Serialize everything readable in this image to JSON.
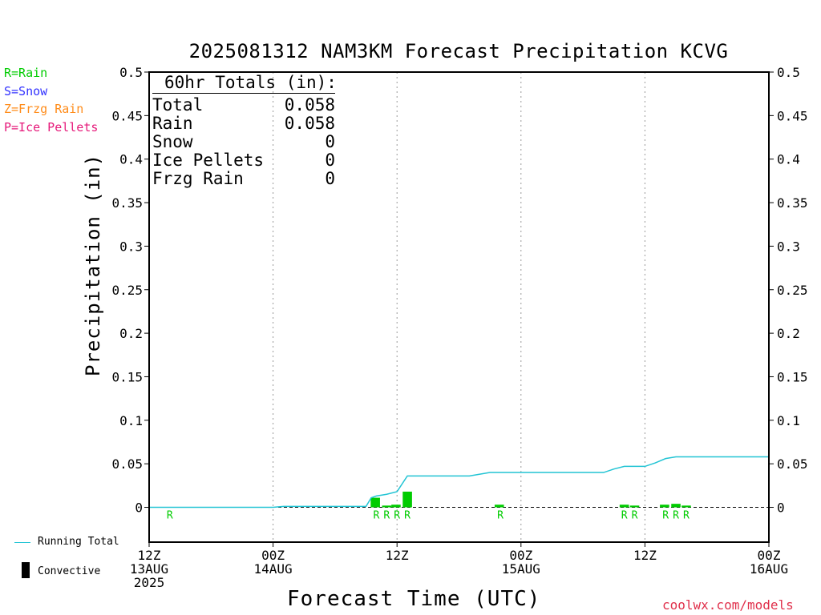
{
  "title": "2025081312 NAM3KM Forecast Precipitation KCVG",
  "ptype_legend": {
    "rain": "R=Rain",
    "snow": "S=Snow",
    "frzg_rain": "Z=Frzg Rain",
    "ice_pellets": "P=Ice Pellets"
  },
  "totals": {
    "header": "60hr Totals (in):",
    "rows": [
      {
        "label": "Total",
        "value": "0.058"
      },
      {
        "label": "Rain",
        "value": "0.058"
      },
      {
        "label": "Snow",
        "value": "0"
      },
      {
        "label": "Ice Pellets",
        "value": "0"
      },
      {
        "label": "Frzg Rain",
        "value": "0"
      }
    ]
  },
  "bottom_legend": {
    "running_total": "Running Total",
    "convective": "Convective"
  },
  "credit": "coolwx.com/models",
  "colors": {
    "rain": "#00cc00",
    "snow": "#3333ff",
    "frzg_rain": "#ff8c1a",
    "ice_pellets": "#e6197a",
    "running_total": "#22c4d4",
    "credit": "#e0304b"
  },
  "chart_data": {
    "type": "bar",
    "xlabel": "Forecast Time (UTC)",
    "ylabel": "Precipitation (in)",
    "xlim": [
      0,
      60
    ],
    "ylim": [
      -0.04,
      0.5
    ],
    "y_ticks": [
      "0",
      "0.05",
      "0.1",
      "0.15",
      "0.2",
      "0.25",
      "0.3",
      "0.35",
      "0.4",
      "0.45",
      "0.5"
    ],
    "x_ticks": [
      {
        "hour": 0,
        "lines": [
          "12Z",
          "13AUG",
          "2025"
        ]
      },
      {
        "hour": 12,
        "lines": [
          "00Z",
          "14AUG"
        ]
      },
      {
        "hour": 24,
        "lines": [
          "12Z"
        ]
      },
      {
        "hour": 36,
        "lines": [
          "00Z",
          "15AUG"
        ]
      },
      {
        "hour": 48,
        "lines": [
          "12Z"
        ]
      },
      {
        "hour": 60,
        "lines": [
          "00Z",
          "16AUG"
        ]
      }
    ],
    "gridlines_at_hours": [
      12,
      24,
      36,
      48
    ],
    "series": [
      {
        "name": "Running Total",
        "type": "line",
        "points": [
          [
            0,
            0
          ],
          [
            12,
            0
          ],
          [
            13,
            0.001
          ],
          [
            21,
            0.001
          ],
          [
            21.5,
            0.011
          ],
          [
            22,
            0.013
          ],
          [
            23,
            0.015
          ],
          [
            24,
            0.018
          ],
          [
            25,
            0.036
          ],
          [
            31,
            0.036
          ],
          [
            33,
            0.04
          ],
          [
            44,
            0.04
          ],
          [
            45,
            0.044
          ],
          [
            46,
            0.047
          ],
          [
            48,
            0.047
          ],
          [
            49,
            0.051
          ],
          [
            50,
            0.056
          ],
          [
            51,
            0.058
          ],
          [
            60,
            0.058
          ]
        ]
      },
      {
        "name": "Rain",
        "type": "bar",
        "bars": [
          [
            21.9,
            0.011
          ],
          [
            23,
            0.002
          ],
          [
            23.9,
            0.003
          ],
          [
            25,
            0.018
          ],
          [
            33.9,
            0.003
          ],
          [
            46,
            0.003
          ],
          [
            47,
            0.002
          ],
          [
            49.9,
            0.003
          ],
          [
            51,
            0.004
          ],
          [
            52,
            0.002
          ]
        ]
      }
    ],
    "ptype_marks": [
      {
        "hour": 2,
        "label": "R"
      },
      {
        "hour": 22,
        "label": "R"
      },
      {
        "hour": 23,
        "label": "R"
      },
      {
        "hour": 24,
        "label": "R"
      },
      {
        "hour": 25,
        "label": "R"
      },
      {
        "hour": 34,
        "label": "R"
      },
      {
        "hour": 46,
        "label": "R"
      },
      {
        "hour": 47,
        "label": "R"
      },
      {
        "hour": 50,
        "label": "R"
      },
      {
        "hour": 51,
        "label": "R"
      },
      {
        "hour": 52,
        "label": "R"
      }
    ]
  }
}
